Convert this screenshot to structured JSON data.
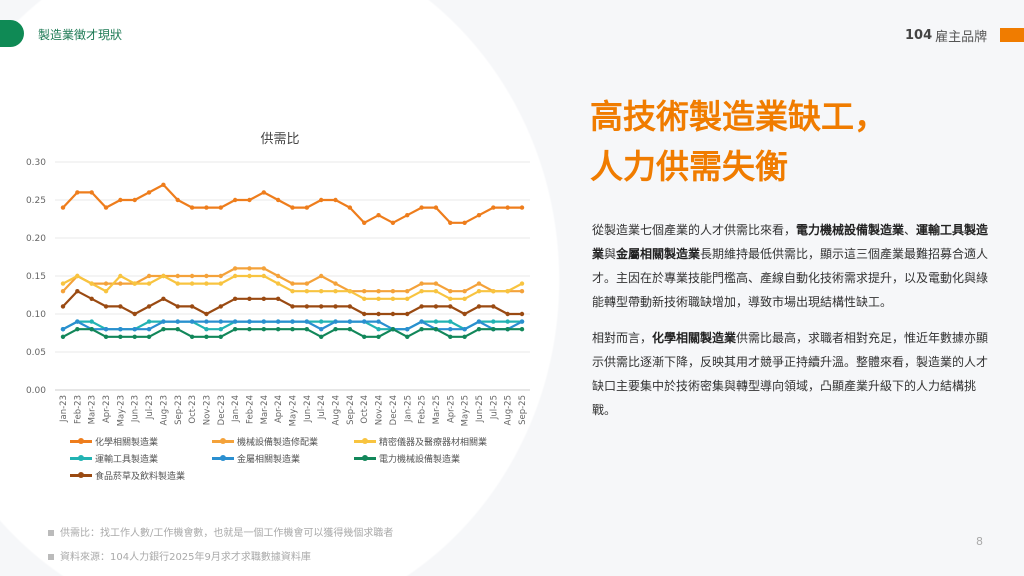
{
  "header": {
    "section_title": "製造業徵才現狀",
    "brand_num": "104",
    "brand_text": "雇主品牌"
  },
  "headline": {
    "line1": "高技術製造業缺工，",
    "line2": "人力供需失衡"
  },
  "body": {
    "paragraphs": [
      [
        {
          "t": "從製造業七個產業的人才供需比來看，",
          "b": false
        },
        {
          "t": "電力機械設備製造業",
          "b": true
        },
        {
          "t": "、",
          "b": false
        },
        {
          "t": "運輸工具製造業",
          "b": true
        },
        {
          "t": "與",
          "b": false
        },
        {
          "t": "金屬相關製造業",
          "b": true
        },
        {
          "t": "長期維持最低供需比，顯示這三個產業最難招募合適人才。主因在於專業技能門檻高、產線自動化技術需求提升，以及電動化與綠能轉型帶動新技術職缺增加，導致市場出現結構性缺工。",
          "b": false
        }
      ],
      [
        {
          "t": "相對而言，",
          "b": false
        },
        {
          "t": "化學相關製造業",
          "b": true
        },
        {
          "t": "供需比最高，求職者相對充足，惟近年數據亦顯示供需比逐漸下降，反映其用才競爭正持續升溫。整體來看，製造業的人才缺口主要集中於技術密集與轉型導向領域，凸顯產業升級下的人力結構挑戰。",
          "b": false
        }
      ]
    ]
  },
  "chart_data": {
    "type": "line",
    "title": "供需比",
    "xlabel": "",
    "ylabel": "",
    "ylim": [
      0,
      0.3
    ],
    "yticks": [
      "0.00",
      "0.05",
      "0.10",
      "0.15",
      "0.20",
      "0.25",
      "0.30"
    ],
    "grid": true,
    "legend_placement": "bottom",
    "categories": [
      "Jan-23",
      "Feb-23",
      "Mar-23",
      "Apr-23",
      "May-23",
      "Jun-23",
      "Jul-23",
      "Aug-23",
      "Sep-23",
      "Oct-23",
      "Nov-23",
      "Dec-23",
      "Jan-24",
      "Feb-24",
      "Mar-24",
      "Apr-24",
      "May-24",
      "Jun-24",
      "Jul-24",
      "Aug-24",
      "Sep-24",
      "Oct-24",
      "Nov-24",
      "Dec-24",
      "Jan-25",
      "Feb-25",
      "Mar-25",
      "Apr-25",
      "May-25",
      "Jun-25",
      "Jul-25",
      "Aug-25",
      "Sep-25"
    ],
    "series": [
      {
        "name": "化學相關製造業",
        "color": "#ee7d1c",
        "values": [
          0.24,
          0.26,
          0.26,
          0.24,
          0.25,
          0.25,
          0.26,
          0.27,
          0.25,
          0.24,
          0.24,
          0.24,
          0.25,
          0.25,
          0.26,
          0.25,
          0.24,
          0.24,
          0.25,
          0.25,
          0.24,
          0.22,
          0.23,
          0.22,
          0.23,
          0.24,
          0.24,
          0.22,
          0.22,
          0.23,
          0.24,
          0.24,
          0.24
        ]
      },
      {
        "name": "機械設備製造修配業",
        "color": "#f4a23a",
        "values": [
          0.13,
          0.15,
          0.14,
          0.14,
          0.14,
          0.14,
          0.15,
          0.15,
          0.15,
          0.15,
          0.15,
          0.15,
          0.16,
          0.16,
          0.16,
          0.15,
          0.14,
          0.14,
          0.15,
          0.14,
          0.13,
          0.13,
          0.13,
          0.13,
          0.13,
          0.14,
          0.14,
          0.13,
          0.13,
          0.14,
          0.13,
          0.13,
          0.13
        ]
      },
      {
        "name": "精密儀器及醫療器材相關業",
        "color": "#f8c440",
        "values": [
          0.14,
          0.15,
          0.14,
          0.13,
          0.15,
          0.14,
          0.14,
          0.15,
          0.14,
          0.14,
          0.14,
          0.14,
          0.15,
          0.15,
          0.15,
          0.14,
          0.13,
          0.13,
          0.13,
          0.13,
          0.13,
          0.12,
          0.12,
          0.12,
          0.12,
          0.13,
          0.13,
          0.12,
          0.12,
          0.13,
          0.13,
          0.13,
          0.14
        ]
      },
      {
        "name": "運輸工具製造業",
        "color": "#22b3b3",
        "values": [
          0.08,
          0.09,
          0.09,
          0.08,
          0.08,
          0.08,
          0.09,
          0.09,
          0.09,
          0.09,
          0.08,
          0.08,
          0.09,
          0.09,
          0.09,
          0.09,
          0.09,
          0.09,
          0.09,
          0.09,
          0.09,
          0.09,
          0.08,
          0.08,
          0.08,
          0.09,
          0.09,
          0.09,
          0.08,
          0.09,
          0.09,
          0.09,
          0.09
        ]
      },
      {
        "name": "金屬相關製造業",
        "color": "#2a8fd0",
        "values": [
          0.08,
          0.09,
          0.08,
          0.08,
          0.08,
          0.08,
          0.08,
          0.09,
          0.09,
          0.09,
          0.09,
          0.09,
          0.09,
          0.09,
          0.09,
          0.09,
          0.09,
          0.09,
          0.08,
          0.09,
          0.09,
          0.09,
          0.09,
          0.08,
          0.08,
          0.09,
          0.08,
          0.08,
          0.08,
          0.09,
          0.08,
          0.08,
          0.09
        ]
      },
      {
        "name": "電力機械設備製造業",
        "color": "#12875a",
        "values": [
          0.07,
          0.08,
          0.08,
          0.07,
          0.07,
          0.07,
          0.07,
          0.08,
          0.08,
          0.07,
          0.07,
          0.07,
          0.08,
          0.08,
          0.08,
          0.08,
          0.08,
          0.08,
          0.07,
          0.08,
          0.08,
          0.07,
          0.07,
          0.08,
          0.07,
          0.08,
          0.08,
          0.07,
          0.07,
          0.08,
          0.08,
          0.08,
          0.08
        ]
      },
      {
        "name": "食品菸草及飲料製造業",
        "color": "#9a4a12",
        "values": [
          0.11,
          0.13,
          0.12,
          0.11,
          0.11,
          0.1,
          0.11,
          0.12,
          0.11,
          0.11,
          0.1,
          0.11,
          0.12,
          0.12,
          0.12,
          0.12,
          0.11,
          0.11,
          0.11,
          0.11,
          0.11,
          0.1,
          0.1,
          0.1,
          0.1,
          0.11,
          0.11,
          0.11,
          0.1,
          0.11,
          0.11,
          0.1,
          0.1
        ]
      }
    ]
  },
  "notes": [
    "供需比：找工作人數/工作機會數，也就是一個工作機會可以獲得幾個求職者",
    "資料來源：104人力銀行2025年9月求才求職數據資料庫"
  ],
  "page_number": "8"
}
